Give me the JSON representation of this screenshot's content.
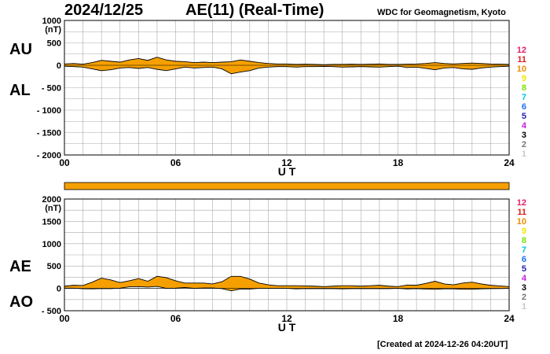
{
  "header": {
    "date": "2024/12/25",
    "title": "AE(11) (Real-Time)",
    "credit": "WDC for Geomagnetism, Kyoto"
  },
  "footer": {
    "created": "[Created at 2024-12-26 04:20UT]"
  },
  "colors": {
    "fill": "#f5a000",
    "grid": "#aaaaaa",
    "bar": "#f5a000"
  },
  "level_scale": [
    {
      "label": "12",
      "color": "#e0206e"
    },
    {
      "label": "11",
      "color": "#dd1c1c"
    },
    {
      "label": "10",
      "color": "#f08a00"
    },
    {
      "label": "9",
      "color": "#f2e600"
    },
    {
      "label": "8",
      "color": "#7fe000"
    },
    {
      "label": "7",
      "color": "#00c6e0"
    },
    {
      "label": "6",
      "color": "#1e6cf0"
    },
    {
      "label": "5",
      "color": "#2020b8"
    },
    {
      "label": "4",
      "color": "#c020d8"
    },
    {
      "label": "3",
      "color": "#000000"
    },
    {
      "label": "2",
      "color": "#777777"
    },
    {
      "label": "1",
      "color": "#c8c8c8"
    }
  ],
  "chart_data": [
    {
      "type": "area",
      "title": "AU / AL",
      "labels": {
        "upper": "AU",
        "lower": "AL"
      },
      "unit": "(nT)",
      "xlabel": "U T",
      "xlim": [
        0,
        24
      ],
      "ylim": [
        -2000,
        1000
      ],
      "yticks": [
        1000,
        500,
        0,
        -500,
        -1000,
        -1500,
        -2000
      ],
      "ytick_labels": [
        "1000",
        "500",
        "0",
        "- 500",
        "- 1000",
        "- 1500",
        "- 2000"
      ],
      "xticks": [
        0,
        6,
        12,
        18,
        24
      ],
      "xtick_labels": [
        "00",
        "06",
        "12",
        "18",
        "24"
      ],
      "grid": true,
      "series": [
        {
          "name": "AU",
          "x": [
            0,
            0.5,
            1,
            1.5,
            2,
            2.5,
            3,
            3.5,
            4,
            4.5,
            5,
            5.5,
            6,
            6.5,
            7,
            7.5,
            8,
            8.5,
            9,
            9.5,
            10,
            10.5,
            11,
            11.5,
            12,
            12.5,
            13,
            13.5,
            14,
            14.5,
            15,
            15.5,
            16,
            16.5,
            17,
            17.5,
            18,
            18.5,
            19,
            19.5,
            20,
            20.5,
            21,
            21.5,
            22,
            22.5,
            23,
            23.5,
            24
          ],
          "y": [
            30,
            40,
            25,
            60,
            110,
            90,
            70,
            120,
            150,
            110,
            180,
            120,
            90,
            80,
            60,
            70,
            60,
            70,
            80,
            120,
            90,
            60,
            40,
            30,
            30,
            20,
            25,
            20,
            15,
            20,
            20,
            25,
            20,
            25,
            30,
            20,
            20,
            25,
            30,
            40,
            60,
            40,
            30,
            40,
            50,
            40,
            30,
            25,
            20
          ]
        },
        {
          "name": "AL",
          "x": [
            0,
            0.5,
            1,
            1.5,
            2,
            2.5,
            3,
            3.5,
            4,
            4.5,
            5,
            5.5,
            6,
            6.5,
            7,
            7.5,
            8,
            8.5,
            9,
            9.5,
            10,
            10.5,
            11,
            11.5,
            12,
            12.5,
            13,
            13.5,
            14,
            14.5,
            15,
            15.5,
            16,
            16.5,
            17,
            17.5,
            18,
            18.5,
            19,
            19.5,
            20,
            20.5,
            21,
            21.5,
            22,
            22.5,
            23,
            23.5,
            24
          ],
          "y": [
            -20,
            -30,
            -40,
            -80,
            -120,
            -100,
            -60,
            -50,
            -70,
            -50,
            -90,
            -120,
            -80,
            -40,
            -60,
            -50,
            -40,
            -80,
            -190,
            -150,
            -120,
            -60,
            -40,
            -30,
            -30,
            -40,
            -30,
            -30,
            -25,
            -30,
            -40,
            -35,
            -30,
            -35,
            -40,
            -30,
            -20,
            -50,
            -40,
            -70,
            -100,
            -60,
            -50,
            -80,
            -90,
            -60,
            -40,
            -30,
            -20
          ]
        }
      ]
    },
    {
      "type": "area",
      "title": "AE / AO",
      "labels": {
        "upper": "AE",
        "lower": "AO"
      },
      "unit": "(nT)",
      "xlabel": "U T",
      "xlim": [
        0,
        24
      ],
      "ylim": [
        -500,
        2000
      ],
      "yticks": [
        2000,
        1500,
        1000,
        500,
        0,
        -500
      ],
      "ytick_labels": [
        "2000",
        "1500",
        "1000",
        "500",
        "0",
        "- 500"
      ],
      "xticks": [
        0,
        6,
        12,
        18,
        24
      ],
      "xtick_labels": [
        "00",
        "06",
        "12",
        "18",
        "24"
      ],
      "grid": true,
      "series": [
        {
          "name": "AE",
          "x": [
            0,
            0.5,
            1,
            1.5,
            2,
            2.5,
            3,
            3.5,
            4,
            4.5,
            5,
            5.5,
            6,
            6.5,
            7,
            7.5,
            8,
            8.5,
            9,
            9.5,
            10,
            10.5,
            11,
            11.5,
            12,
            12.5,
            13,
            13.5,
            14,
            14.5,
            15,
            15.5,
            16,
            16.5,
            17,
            17.5,
            18,
            18.5,
            19,
            19.5,
            20,
            20.5,
            21,
            21.5,
            22,
            22.5,
            23,
            23.5,
            24
          ],
          "y": [
            50,
            70,
            65,
            140,
            230,
            190,
            130,
            170,
            220,
            160,
            270,
            240,
            170,
            120,
            120,
            120,
            100,
            150,
            270,
            270,
            210,
            120,
            80,
            60,
            60,
            60,
            55,
            50,
            40,
            50,
            60,
            60,
            50,
            60,
            70,
            50,
            40,
            75,
            70,
            110,
            160,
            100,
            80,
            120,
            140,
            100,
            70,
            55,
            40
          ]
        },
        {
          "name": "AO",
          "x": [
            0,
            0.5,
            1,
            1.5,
            2,
            2.5,
            3,
            3.5,
            4,
            4.5,
            5,
            5.5,
            6,
            6.5,
            7,
            7.5,
            8,
            8.5,
            9,
            9.5,
            10,
            10.5,
            11,
            11.5,
            12,
            12.5,
            13,
            13.5,
            14,
            14.5,
            15,
            15.5,
            16,
            16.5,
            17,
            17.5,
            18,
            18.5,
            19,
            19.5,
            20,
            20.5,
            21,
            21.5,
            22,
            22.5,
            23,
            23.5,
            24
          ],
          "y": [
            5,
            5,
            -8,
            -10,
            -5,
            -5,
            5,
            35,
            40,
            30,
            45,
            0,
            5,
            20,
            0,
            10,
            10,
            -5,
            -55,
            -15,
            -15,
            0,
            0,
            0,
            0,
            -10,
            -3,
            -5,
            -5,
            -5,
            -10,
            -5,
            -5,
            -5,
            -5,
            -5,
            0,
            -13,
            -5,
            -15,
            -20,
            -10,
            -10,
            -20,
            -20,
            -10,
            -5,
            -3,
            0
          ]
        }
      ]
    }
  ]
}
